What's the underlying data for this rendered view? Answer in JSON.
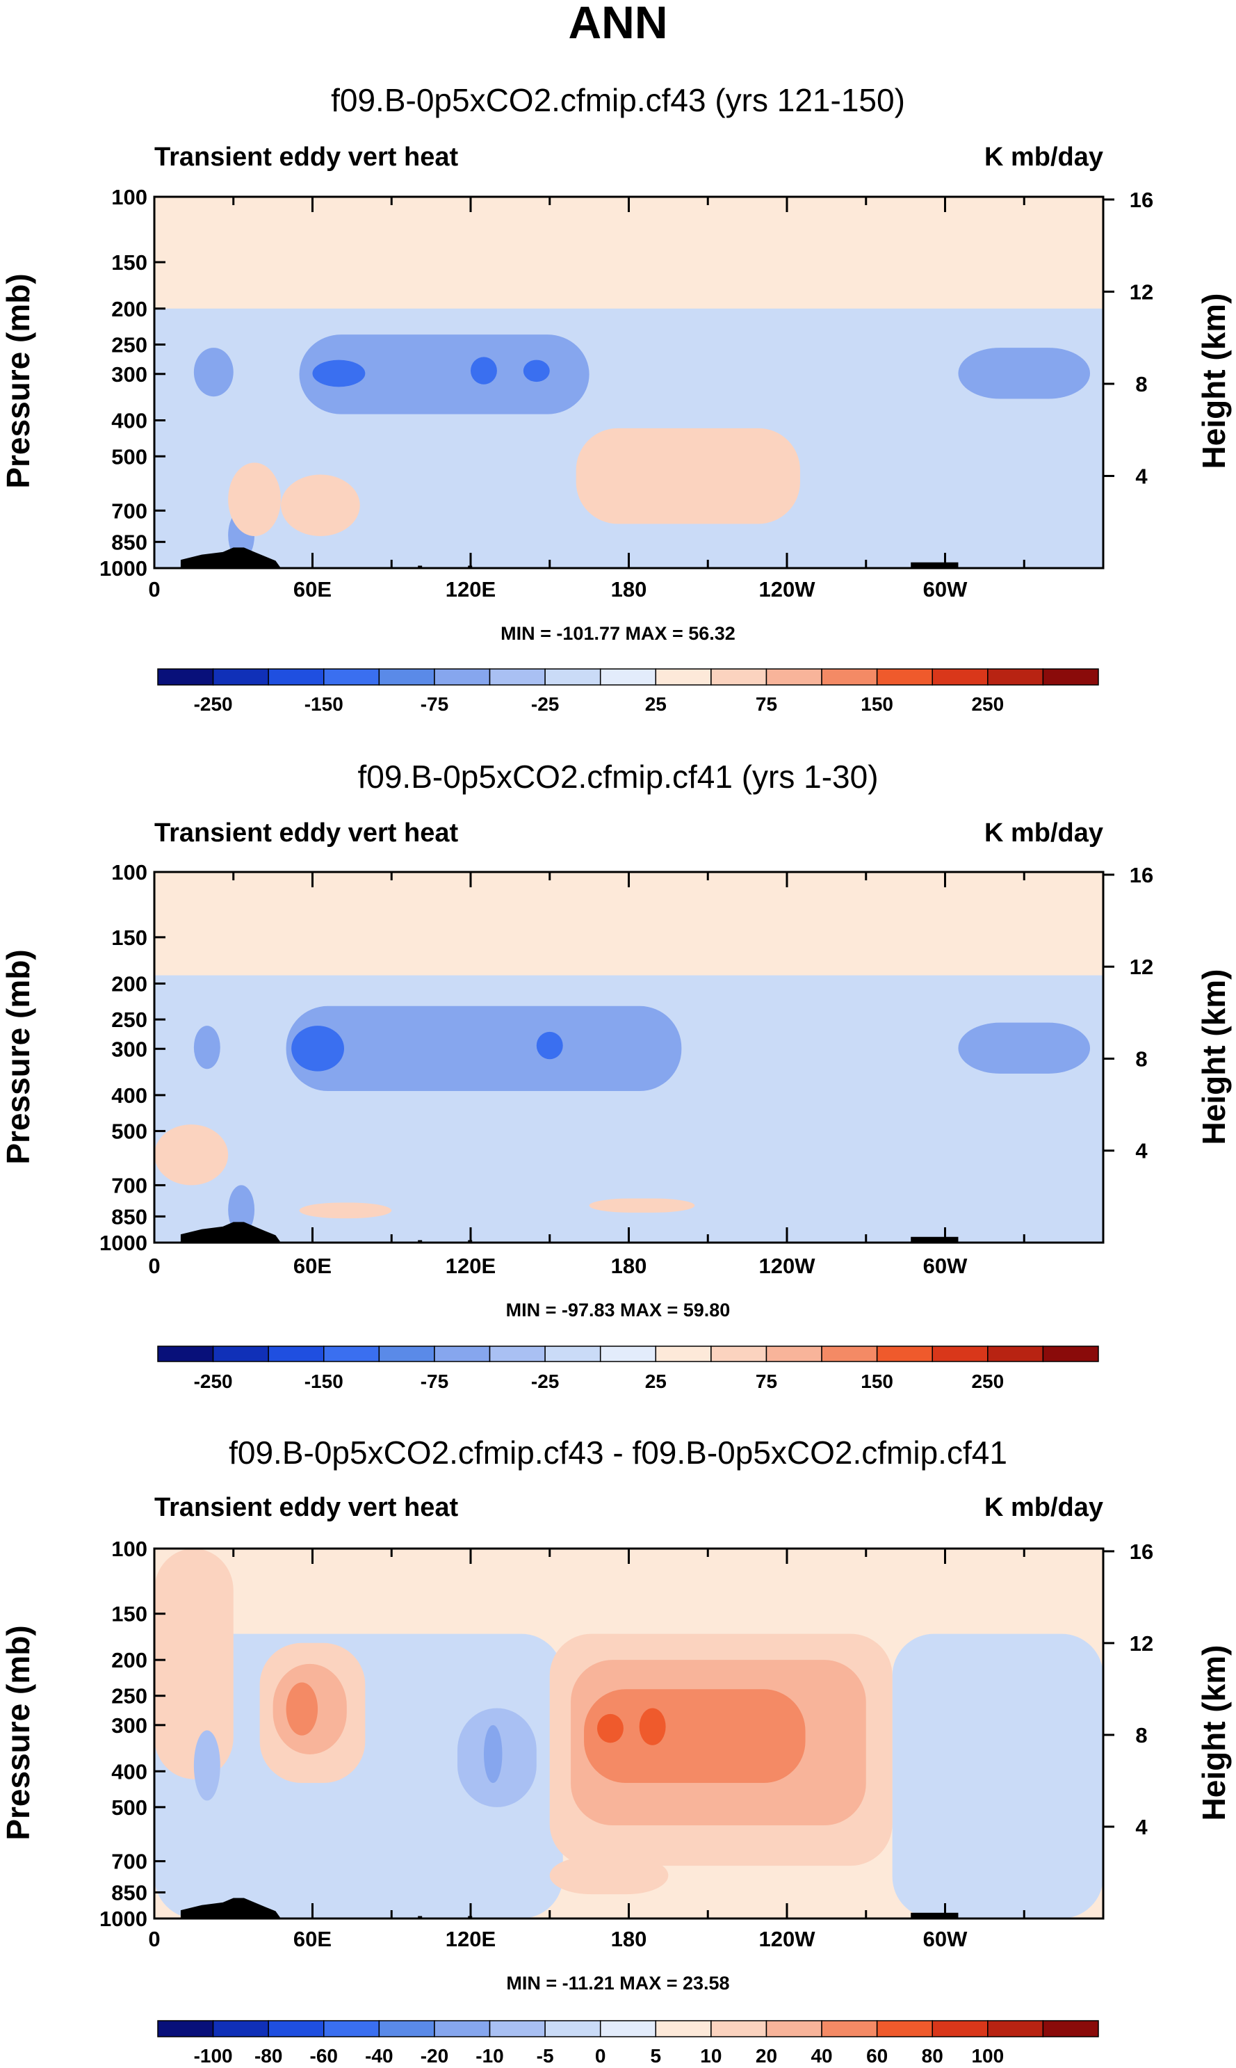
{
  "page_title": "ANN",
  "chart_data": [
    {
      "type": "heatmap",
      "title": "f09.B-0p5xCO2.cfmip.cf43 (yrs 121-150)",
      "left_label": "Transient eddy vert heat",
      "right_label": "K mb/day",
      "ylabel": "Pressure (mb)",
      "y2label": "Height (km)",
      "y_ticks": [
        100,
        150,
        200,
        250,
        300,
        400,
        500,
        700,
        850,
        1000
      ],
      "y2_ticks": [
        16,
        12,
        8,
        4
      ],
      "x_tick_labels": [
        "0",
        "60E",
        "120E",
        "180",
        "120W",
        "60W"
      ],
      "xlim": [
        0,
        360
      ],
      "ylim": [
        1000,
        100
      ],
      "minmax": "MIN = -101.77   MAX =  56.32",
      "colorbar_labels": [
        "-250",
        "-150",
        "-75",
        "-25",
        "25",
        "75",
        "150",
        "250"
      ],
      "colorbar_colors": [
        "#08107a",
        "#1030b8",
        "#1f4fe0",
        "#3a6ff0",
        "#5a8ae8",
        "#86a6ee",
        "#a9c0f3",
        "#cadbf7",
        "#e3ecfb",
        "#fde9d9",
        "#fbd3bf",
        "#f8b49a",
        "#f48a65",
        "#ef5a2c",
        "#d9371a",
        "#b82312",
        "#8a0b0a"
      ],
      "regions": [
        {
          "level": "-25",
          "lon0": 0,
          "lon1": 360,
          "p0": 200,
          "p1": 1000
        },
        {
          "level": "-75",
          "lon0": 55,
          "lon1": 165,
          "p0": 235,
          "p1": 385
        },
        {
          "level": "-150",
          "lon0": 60,
          "lon1": 80,
          "p0": 275,
          "p1": 325
        },
        {
          "level": "-150",
          "lon0": 120,
          "lon1": 130,
          "p0": 270,
          "p1": 320
        },
        {
          "level": "-150",
          "lon0": 140,
          "lon1": 150,
          "p0": 275,
          "p1": 315
        },
        {
          "level": "-75",
          "lon0": 305,
          "lon1": 355,
          "p0": 255,
          "p1": 350
        },
        {
          "level": "-75",
          "lon0": 15,
          "lon1": 30,
          "p0": 255,
          "p1": 345
        },
        {
          "level": "-75",
          "lon0": 28,
          "lon1": 38,
          "p0": 700,
          "p1": 950
        },
        {
          "level": "25",
          "lon0": 160,
          "lon1": 245,
          "p0": 420,
          "p1": 760
        },
        {
          "level": "25",
          "lon0": 28,
          "lon1": 48,
          "p0": 520,
          "p1": 820
        },
        {
          "level": "25",
          "lon0": 48,
          "lon1": 78,
          "p0": 560,
          "p1": 820
        }
      ]
    },
    {
      "type": "heatmap",
      "title": "f09.B-0p5xCO2.cfmip.cf41 (yrs 1-30)",
      "left_label": "Transient eddy vert heat",
      "right_label": "K mb/day",
      "ylabel": "Pressure (mb)",
      "y2label": "Height (km)",
      "y_ticks": [
        100,
        150,
        200,
        250,
        300,
        400,
        500,
        700,
        850,
        1000
      ],
      "y2_ticks": [
        16,
        12,
        8,
        4
      ],
      "x_tick_labels": [
        "0",
        "60E",
        "120E",
        "180",
        "120W",
        "60W"
      ],
      "xlim": [
        0,
        360
      ],
      "ylim": [
        1000,
        100
      ],
      "minmax": "MIN = -97.83   MAX =  59.80",
      "colorbar_labels": [
        "-250",
        "-150",
        "-75",
        "-25",
        "25",
        "75",
        "150",
        "250"
      ],
      "colorbar_colors": [
        "#08107a",
        "#1030b8",
        "#1f4fe0",
        "#3a6ff0",
        "#5a8ae8",
        "#86a6ee",
        "#a9c0f3",
        "#cadbf7",
        "#e3ecfb",
        "#fde9d9",
        "#fbd3bf",
        "#f8b49a",
        "#f48a65",
        "#ef5a2c",
        "#d9371a",
        "#b82312",
        "#8a0b0a"
      ],
      "regions": [
        {
          "level": "-25",
          "lon0": 0,
          "lon1": 360,
          "p0": 190,
          "p1": 1000
        },
        {
          "level": "-75",
          "lon0": 50,
          "lon1": 200,
          "p0": 230,
          "p1": 390
        },
        {
          "level": "-150",
          "lon0": 52,
          "lon1": 72,
          "p0": 260,
          "p1": 345
        },
        {
          "level": "-150",
          "lon0": 145,
          "lon1": 155,
          "p0": 270,
          "p1": 320
        },
        {
          "level": "-75",
          "lon0": 305,
          "lon1": 355,
          "p0": 255,
          "p1": 350
        },
        {
          "level": "-75",
          "lon0": 15,
          "lon1": 25,
          "p0": 260,
          "p1": 340
        },
        {
          "level": "-75",
          "lon0": 28,
          "lon1": 38,
          "p0": 700,
          "p1": 950
        },
        {
          "level": "25",
          "lon0": 0,
          "lon1": 28,
          "p0": 480,
          "p1": 700
        },
        {
          "level": "25",
          "lon0": 55,
          "lon1": 90,
          "p0": 780,
          "p1": 860
        },
        {
          "level": "25",
          "lon0": 165,
          "lon1": 205,
          "p0": 760,
          "p1": 830
        }
      ]
    },
    {
      "type": "heatmap",
      "title": "f09.B-0p5xCO2.cfmip.cf43 - f09.B-0p5xCO2.cfmip.cf41",
      "left_label": "Transient eddy vert heat",
      "right_label": "K mb/day",
      "ylabel": "Pressure (mb)",
      "y2label": "Height (km)",
      "y_ticks": [
        100,
        150,
        200,
        250,
        300,
        400,
        500,
        700,
        850,
        1000
      ],
      "y2_ticks": [
        16,
        12,
        8,
        4
      ],
      "x_tick_labels": [
        "0",
        "60E",
        "120E",
        "180",
        "120W",
        "60W"
      ],
      "xlim": [
        0,
        360
      ],
      "ylim": [
        1000,
        100
      ],
      "minmax": "MIN = -11.21   MAX =  23.58",
      "colorbar_labels": [
        "-100",
        "-80",
        "-60",
        "-40",
        "-20",
        "-10",
        "-5",
        "0",
        "5",
        "10",
        "20",
        "40",
        "60",
        "80",
        "100"
      ],
      "colorbar_colors": [
        "#08107a",
        "#1030b8",
        "#1f4fe0",
        "#3a6ff0",
        "#5a8ae8",
        "#86a6ee",
        "#a9c0f3",
        "#cadbf7",
        "#e3ecfb",
        "#fde9d9",
        "#fbd3bf",
        "#f8b49a",
        "#f48a65",
        "#ef5a2c",
        "#d9371a",
        "#b82312",
        "#8a0b0a"
      ],
      "regions": [
        {
          "level": "-5",
          "lon0": 0,
          "lon1": 155,
          "p0": 170,
          "p1": 1000
        },
        {
          "level": "-5",
          "lon0": 280,
          "lon1": 360,
          "p0": 170,
          "p1": 1000
        },
        {
          "level": "5",
          "lon0": 0,
          "lon1": 30,
          "p0": 100,
          "p1": 420
        },
        {
          "level": "5",
          "lon0": 40,
          "lon1": 80,
          "p0": 180,
          "p1": 430
        },
        {
          "level": "10",
          "lon0": 45,
          "lon1": 73,
          "p0": 205,
          "p1": 360
        },
        {
          "level": "20",
          "lon0": 50,
          "lon1": 62,
          "p0": 230,
          "p1": 320
        },
        {
          "level": "-10",
          "lon0": 115,
          "lon1": 145,
          "p0": 270,
          "p1": 500
        },
        {
          "level": "-20",
          "lon0": 125,
          "lon1": 132,
          "p0": 300,
          "p1": 430
        },
        {
          "level": "-10",
          "lon0": 15,
          "lon1": 25,
          "p0": 310,
          "p1": 480
        },
        {
          "level": "5",
          "lon0": 150,
          "lon1": 280,
          "p0": 170,
          "p1": 720
        },
        {
          "level": "10",
          "lon0": 158,
          "lon1": 270,
          "p0": 200,
          "p1": 560
        },
        {
          "level": "20",
          "lon0": 163,
          "lon1": 247,
          "p0": 240,
          "p1": 430
        },
        {
          "level": "40",
          "lon0": 168,
          "lon1": 178,
          "p0": 280,
          "p1": 335
        },
        {
          "level": "40",
          "lon0": 184,
          "lon1": 194,
          "p0": 270,
          "p1": 340
        },
        {
          "level": "5",
          "lon0": 150,
          "lon1": 195,
          "p0": 680,
          "p1": 860
        }
      ]
    }
  ]
}
